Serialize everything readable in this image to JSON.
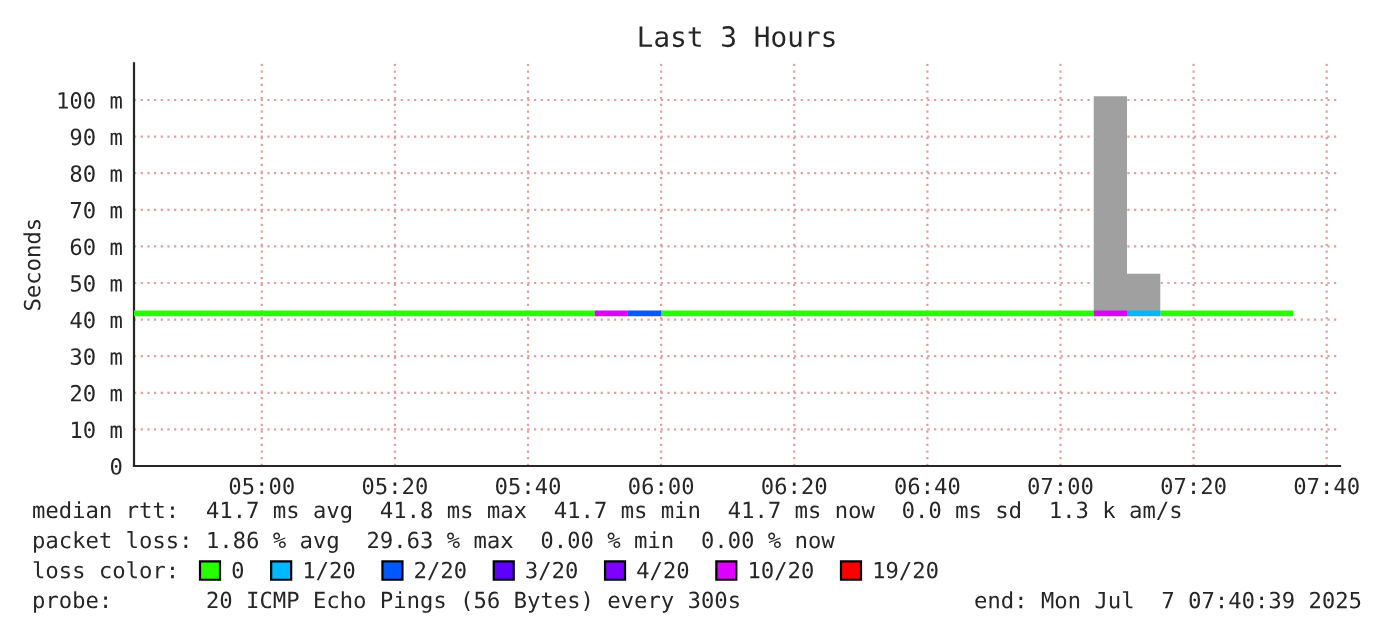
{
  "chart_data": {
    "type": "line",
    "title": "Last 3 Hours",
    "ylabel": "Seconds",
    "xlim": [
      4.68,
      7.7
    ],
    "xticks": [
      {
        "value": 5,
        "label": "05:00"
      },
      {
        "value": 5.3333,
        "label": "05:20"
      },
      {
        "value": 5.6667,
        "label": "05:40"
      },
      {
        "value": 6,
        "label": "06:00"
      },
      {
        "value": 6.3333,
        "label": "06:20"
      },
      {
        "value": 6.6667,
        "label": "06:40"
      },
      {
        "value": 7,
        "label": "07:00"
      },
      {
        "value": 7.3333,
        "label": "07:20"
      },
      {
        "value": 7.6667,
        "label": "07:40"
      }
    ],
    "ylim": [
      0,
      110
    ],
    "yticks": [
      0,
      {
        "value": 10,
        "label": "10 m"
      },
      {
        "value": 20,
        "label": "20 m"
      },
      {
        "value": 30,
        "label": "30 m"
      },
      {
        "value": 40,
        "label": "40 m"
      },
      {
        "value": 50,
        "label": "50 m"
      },
      {
        "value": 60,
        "label": "60 m"
      },
      {
        "value": 70,
        "label": "70 m"
      },
      {
        "value": 80,
        "label": "80 m"
      },
      {
        "value": 90,
        "label": "90 m"
      },
      {
        "value": 100,
        "label": "100 m"
      }
    ],
    "grid": true,
    "legend": "bottom",
    "series": [
      {
        "type": "bar",
        "color": "#a0a0a0",
        "x": [
          7.125,
          7.2083
        ],
        "base": [
          41.7,
          41.7
        ],
        "values": [
          59.3,
          10.8
        ]
      },
      {
        "name": "0",
        "color": "#26ff00",
        "x": [
          4.68,
          5.8333,
          5.9,
          6.0,
          7.0833,
          7.1,
          7.25,
          7.5833
        ],
        "values": [
          41.7,
          41.7,
          null,
          41.7,
          41.7,
          null,
          41.7,
          41.7
        ]
      },
      {
        "name": "1/20",
        "color": "#00b8ff",
        "x": [
          7.1667,
          7.25
        ],
        "values": [
          41.7,
          41.7
        ]
      },
      {
        "name": "2/20",
        "color": "#0059ff",
        "x": [
          5.9167,
          6.0
        ],
        "values": [
          41.7,
          41.7
        ]
      },
      {
        "name": "3/20",
        "color": "#5e00ff"
      },
      {
        "name": "4/20",
        "color": "#7e00ff"
      },
      {
        "name": "10/20",
        "color": "#dd00ff",
        "x": [
          5.8333,
          5.9167,
          5.95,
          7.0833,
          7.1667
        ],
        "values": [
          41.7,
          41.7,
          null,
          41.7,
          41.7
        ]
      },
      {
        "name": "19/20",
        "color": "#ff0000"
      }
    ],
    "annotations": [
      "median rtt:  41.7 ms avg  41.8 ms max  41.7 ms min  41.7 ms now  0.0 ms sd  1.3 k am/s",
      "packet loss: 1.86 % avg  29.63 % max  0.00 % min  0.00 % now",
      "loss color:",
      "probe:       20 ICMP Echo Pings (56 Bytes) every 300s",
      "end: Mon Jul  7 07:40:39 2025"
    ]
  }
}
